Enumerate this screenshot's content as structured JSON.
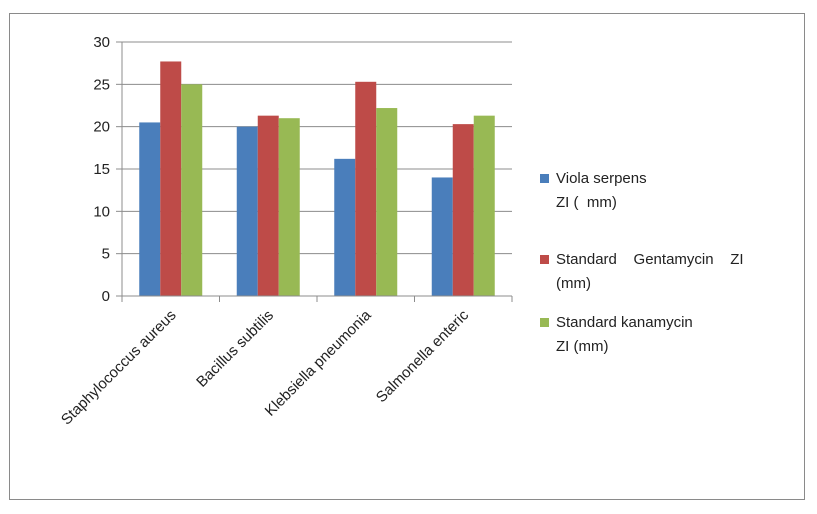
{
  "chart_data": {
    "type": "bar",
    "title": "",
    "xlabel": "",
    "ylabel": "",
    "categories": [
      "Staphylococcus aureus",
      "Bacillus subtilis",
      "Klebsiella pneumonia",
      "Salmonella enteric"
    ],
    "series": [
      {
        "name": "Viola serpens ZI (  mm)",
        "legend_lines": [
          "Viola serpens",
          "ZI (  mm)"
        ],
        "color": "#4a7ebb",
        "values": [
          20.5,
          20.0,
          16.2,
          14.0
        ]
      },
      {
        "name": "Standard  Gentamycin ZI (mm)",
        "legend_lines": [
          "Standard    Gentamycin    ZI",
          "(mm)"
        ],
        "color": "#be4b48",
        "values": [
          27.7,
          21.3,
          25.3,
          20.3
        ]
      },
      {
        "name": "Standard kanamycin ZI (mm)",
        "legend_lines": [
          "Standard kanamycin",
          "ZI (mm)"
        ],
        "color": "#98b954",
        "values": [
          25.0,
          21.0,
          22.2,
          21.3
        ]
      }
    ],
    "ylim": [
      0,
      30
    ],
    "yticks": [
      0,
      5,
      10,
      15,
      20,
      25,
      30
    ],
    "grid": true,
    "legend_position": "right"
  }
}
